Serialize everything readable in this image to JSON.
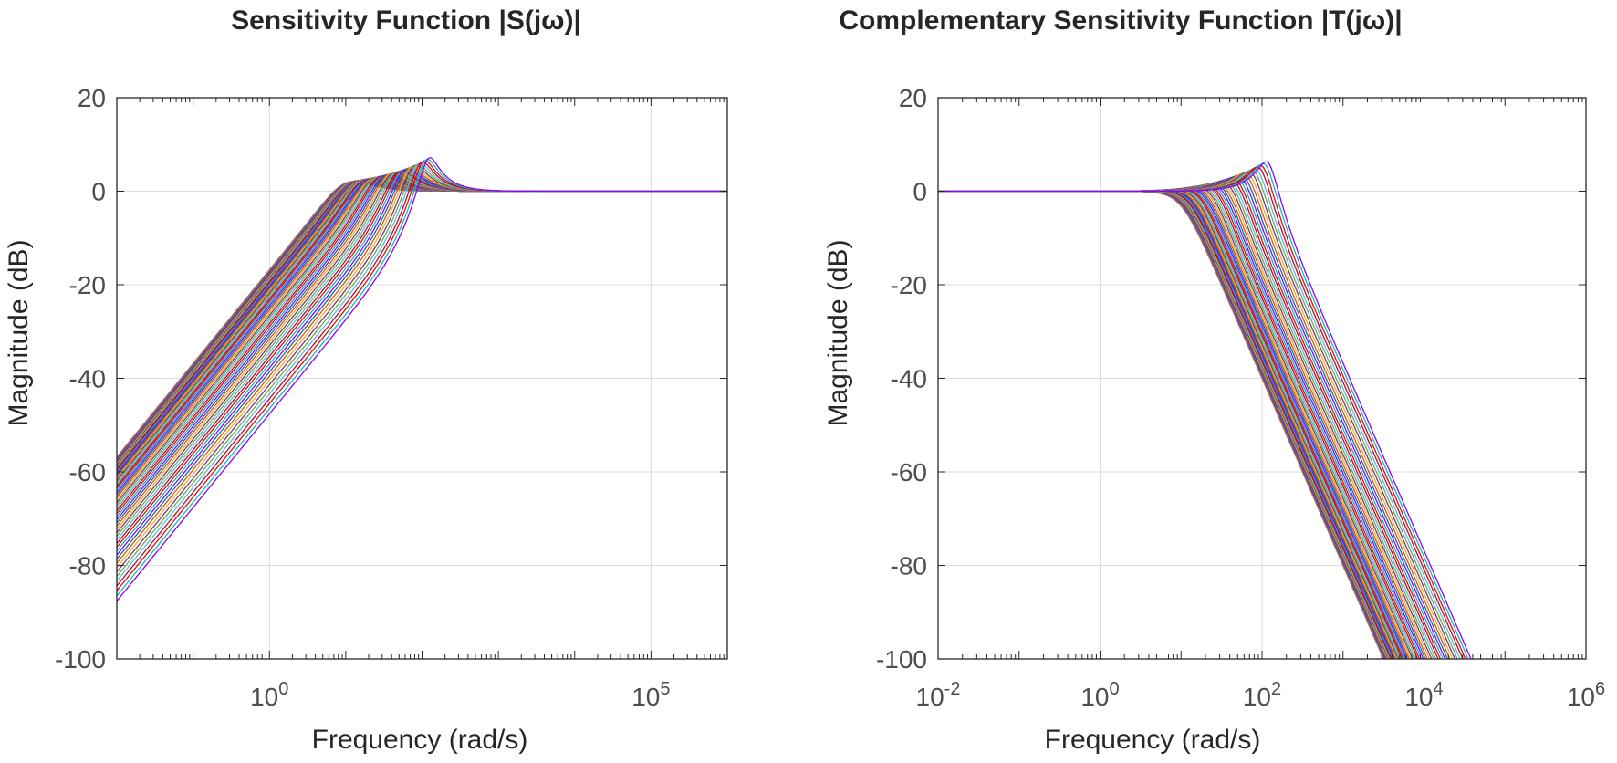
{
  "chart_data": [
    {
      "type": "line",
      "title": "Sensitivity  Function  |S(jω)|",
      "xlabel": "Frequency (rad/s)",
      "ylabel": "Magnitude (dB)",
      "xscale": "log",
      "xlim_log10": [
        -2,
        6
      ],
      "ylim": [
        -100,
        20
      ],
      "yticks": [
        20,
        0,
        -20,
        -40,
        -60,
        -80,
        -100
      ],
      "ytick_labels": [
        "20",
        "0",
        "-20",
        "-40",
        "-60",
        "-80",
        "-100"
      ],
      "xtick_exponents": [
        0,
        5
      ],
      "xtick_labels": [
        {
          "base": "10",
          "exp": "0"
        },
        {
          "base": "10",
          "exp": "5"
        }
      ],
      "grid": true,
      "legend": "none",
      "n_series": 60,
      "series_summary": "Family of |S(jω)| curves rising at +20 dB/decade from about -55 to -87 dB at the left edge, crossing 0 dB between roughly 10 and 100 rad/s, with resonant peaks of about +1 to +6.5 dB near 100 rad/s, then flat at 0 dB.",
      "crossover_range_rad_s": [
        10,
        120
      ],
      "peak_range_dB": [
        1,
        6.5
      ]
    },
    {
      "type": "line",
      "title": "Complementary  Sensitivity  Function  |T(jω)|",
      "xlabel": "Frequency (rad/s)",
      "ylabel": "Magnitude (dB)",
      "xscale": "log",
      "xlim_log10": [
        -2,
        6
      ],
      "ylim": [
        -100,
        20
      ],
      "yticks": [
        20,
        0,
        -20,
        -40,
        -60,
        -80,
        -100
      ],
      "ytick_labels": [
        "20",
        "0",
        "-20",
        "-40",
        "-60",
        "-80",
        "-100"
      ],
      "xtick_exponents": [
        -2,
        0,
        2,
        4,
        6
      ],
      "xtick_labels": [
        {
          "base": "10",
          "exp": "-2"
        },
        {
          "base": "10",
          "exp": "0"
        },
        {
          "base": "10",
          "exp": "2"
        },
        {
          "base": "10",
          "exp": "4"
        },
        {
          "base": "10",
          "exp": "6"
        }
      ],
      "grid": true,
      "legend": "none",
      "n_series": 60,
      "series_summary": "Family of |T(jω)| curves flat at 0 dB at low frequency, rolling off at -40 dB/decade with bandwidths of roughly 10 to 120 rad/s, resonant peaks up to about +6 dB near 100 rad/s, reaching -100 dB between about 3000 and 30000 rad/s.",
      "crossover_range_rad_s": [
        10,
        120
      ],
      "peak_range_dB": [
        1,
        6
      ]
    }
  ],
  "palette": [
    "#0072BD",
    "#D95319",
    "#EDB120",
    "#7E2F8E",
    "#77AC30",
    "#4DBEEE",
    "#A2142F",
    "#FF0000",
    "#00C0C0",
    "#8B00FF"
  ],
  "colors": {
    "grid": "#dcdcdc",
    "axis": "#262626",
    "tick_text": "#4d4d4d"
  }
}
